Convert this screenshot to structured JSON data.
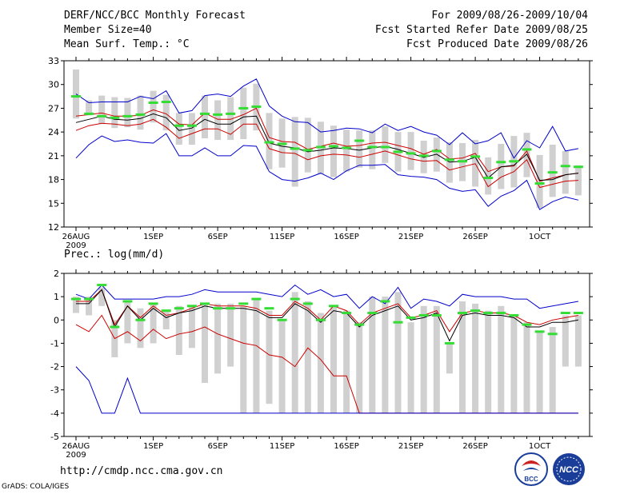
{
  "header": {
    "title": "DERF/NCC/BCC Monthly Forecast",
    "member_size": "Member Size=40",
    "variable": "Mean Surf. Temp.: °C",
    "period": "For 2009/08/26-2009/10/04",
    "started": "Fcst Started Refer Date 2009/08/25",
    "produced": "Fcst Produced Date 2009/08/26"
  },
  "footer": {
    "url": "http://cmdp.ncc.cma.gov.cn",
    "credit": "GrADS: COLA/IGES"
  },
  "logos": {
    "bcc_label": "BCC",
    "ncc_label": "NCC"
  },
  "colors": {
    "max_min": "#0000cc",
    "spread": "#cc0000",
    "mean": "#000000",
    "ref": "#33dd33",
    "box": "#d0d0d0"
  },
  "chart_data": [
    {
      "type": "line",
      "title": "Mean Surf. Temp.: °C",
      "ylim": [
        12,
        33
      ],
      "yticks": [
        "33",
        "30",
        "27",
        "24",
        "21",
        "18",
        "15",
        "12"
      ],
      "x_tick_labels": [
        {
          "label": "26AUG",
          "day": 0,
          "sub": "2009"
        },
        {
          "label": "1SEP",
          "day": 6
        },
        {
          "label": "6SEP",
          "day": 11
        },
        {
          "label": "11SEP",
          "day": 16
        },
        {
          "label": "16SEP",
          "day": 21
        },
        {
          "label": "21SEP",
          "day": 26
        },
        {
          "label": "26SEP",
          "day": 31
        },
        {
          "label": "1OCT",
          "day": 36
        }
      ],
      "days": 39,
      "series": [
        {
          "name": "max",
          "color": "#0000cc",
          "values": [
            28.8,
            27.7,
            27.8,
            27.8,
            27.8,
            28.5,
            28.2,
            29.2,
            26.4,
            26.7,
            28.6,
            28.8,
            28.5,
            29.8,
            30.7,
            27.3,
            26.0,
            25.3,
            25.2,
            24.0,
            24.2,
            24.5,
            24.4,
            23.9,
            25.0,
            24.2,
            24.7,
            24.0,
            23.6,
            22.4,
            23.9,
            22.5,
            22.9,
            23.9,
            20.7,
            22.9,
            22.0,
            24.7,
            21.6,
            21.9
          ]
        },
        {
          "name": "spread_high",
          "color": "#cc0000",
          "values": [
            26.0,
            26.2,
            26.4,
            26.0,
            26.0,
            26.1,
            26.8,
            26.3,
            25.0,
            24.9,
            26.4,
            25.6,
            25.6,
            26.2,
            27.0,
            23.3,
            22.8,
            22.7,
            21.8,
            22.2,
            22.6,
            22.2,
            22.3,
            22.6,
            22.7,
            22.3,
            21.9,
            21.2,
            21.8,
            20.6,
            20.7,
            21.3,
            19.0,
            19.6,
            19.7,
            21.6,
            17.8,
            18.2,
            18.6,
            18.8
          ]
        },
        {
          "name": "mean",
          "color": "#000000",
          "values": [
            25.2,
            25.6,
            26.0,
            25.6,
            25.5,
            25.7,
            26.3,
            25.8,
            24.2,
            24.5,
            25.6,
            25.0,
            25.0,
            25.9,
            26.0,
            22.6,
            22.2,
            22.0,
            21.5,
            21.7,
            22.0,
            21.9,
            21.7,
            22.0,
            22.2,
            21.8,
            21.3,
            20.8,
            21.2,
            20.2,
            20.3,
            20.8,
            18.2,
            19.6,
            19.8,
            21.2,
            17.9,
            18.0,
            18.6,
            18.8
          ]
        },
        {
          "name": "spread_low",
          "color": "#cc0000",
          "values": [
            24.2,
            24.8,
            25.1,
            25.0,
            24.8,
            25.0,
            25.6,
            24.6,
            23.2,
            23.8,
            24.4,
            24.4,
            23.7,
            25.0,
            25.0,
            21.9,
            21.4,
            21.3,
            20.5,
            21.0,
            21.2,
            21.1,
            20.8,
            21.2,
            21.6,
            21.1,
            20.6,
            20.3,
            20.4,
            19.2,
            19.6,
            20.0,
            17.1,
            18.3,
            19.0,
            20.5,
            17.0,
            17.4,
            17.8,
            17.9
          ]
        },
        {
          "name": "min",
          "color": "#0000cc",
          "values": [
            20.7,
            22.4,
            23.5,
            22.8,
            23.0,
            22.7,
            22.6,
            23.8,
            21.0,
            21.0,
            22.0,
            21.0,
            21.0,
            22.3,
            22.2,
            19.0,
            18.0,
            17.8,
            18.2,
            18.8,
            18.0,
            19.1,
            19.8,
            19.8,
            19.9,
            18.6,
            18.4,
            18.3,
            18.0,
            16.9,
            16.5,
            16.7,
            14.6,
            15.9,
            16.6,
            17.9,
            14.2,
            15.2,
            15.8,
            15.4
          ]
        }
      ],
      "boxes": [
        [
          25.7,
          31.9
        ],
        [
          26.1,
          28.0
        ],
        [
          25.0,
          28.6
        ],
        [
          24.5,
          28.4
        ],
        [
          24.6,
          28.3
        ],
        [
          24.3,
          28.6
        ],
        [
          25.2,
          29.2
        ],
        [
          24.2,
          28.7
        ],
        [
          22.4,
          26.4
        ],
        [
          22.4,
          26.4
        ],
        [
          23.2,
          28.6
        ],
        [
          23.0,
          28.0
        ],
        [
          23.0,
          28.4
        ],
        [
          23.1,
          29.6
        ],
        [
          24.2,
          30.1
        ],
        [
          19.3,
          26.4
        ],
        [
          19.5,
          25.7
        ],
        [
          17.1,
          25.9
        ],
        [
          18.9,
          25.8
        ],
        [
          18.7,
          25.3
        ],
        [
          18.3,
          24.8
        ],
        [
          19.0,
          24.3
        ],
        [
          19.5,
          24.2
        ],
        [
          19.3,
          24.2
        ],
        [
          20.1,
          24.7
        ],
        [
          19.0,
          24.0
        ],
        [
          19.2,
          24.0
        ],
        [
          18.8,
          22.9
        ],
        [
          19.0,
          23.3
        ],
        [
          17.6,
          22.7
        ],
        [
          17.8,
          22.6
        ],
        [
          17.1,
          23.0
        ],
        [
          16.1,
          20.8
        ],
        [
          16.8,
          22.5
        ],
        [
          17.0,
          23.5
        ],
        [
          18.3,
          23.9
        ],
        [
          14.4,
          21.1
        ],
        [
          15.8,
          22.4
        ],
        [
          16.2,
          21.6
        ],
        [
          16.0,
          19.8
        ]
      ],
      "ref_marks": [
        28.5,
        26.3,
        26.0,
        25.8,
        26.0,
        26.2,
        27.7,
        27.8,
        24.8,
        24.8,
        26.3,
        26.2,
        26.3,
        27.0,
        27.2,
        22.7,
        22.5,
        21.9,
        21.7,
        22.1,
        22.2,
        22.0,
        22.9,
        22.1,
        22.1,
        21.5,
        21.3,
        21.0,
        21.6,
        20.5,
        20.3,
        20.9,
        18.2,
        20.2,
        20.3,
        21.8,
        17.5,
        18.9,
        19.7,
        19.6
      ]
    },
    {
      "type": "line",
      "title": "Prec.: log(mm/d)",
      "ylim": [
        -5,
        2
      ],
      "yticks": [
        "2",
        "1",
        "0",
        "-1",
        "-2",
        "-3",
        "-4",
        "-5"
      ],
      "x_tick_labels": [
        {
          "label": "26AUG",
          "day": 0,
          "sub": "2009"
        },
        {
          "label": "1SEP",
          "day": 6
        },
        {
          "label": "6SEP",
          "day": 11
        },
        {
          "label": "11SEP",
          "day": 16
        },
        {
          "label": "16SEP",
          "day": 21
        },
        {
          "label": "21SEP",
          "day": 26
        },
        {
          "label": "26SEP",
          "day": 31
        },
        {
          "label": "1OCT",
          "day": 36
        }
      ],
      "days": 39,
      "series": [
        {
          "name": "max",
          "color": "#0000cc",
          "values": [
            1.1,
            0.9,
            1.5,
            0.9,
            0.9,
            0.9,
            0.9,
            1.0,
            1.0,
            1.1,
            1.3,
            1.2,
            1.2,
            1.2,
            1.2,
            1.1,
            1.0,
            1.5,
            1.1,
            1.3,
            1.0,
            1.1,
            0.5,
            1.0,
            0.7,
            1.4,
            0.5,
            0.9,
            0.8,
            0.6,
            1.1,
            1.0,
            1.0,
            1.0,
            0.9,
            0.9,
            0.5,
            0.6,
            0.7,
            0.8
          ]
        },
        {
          "name": "spread_high",
          "color": "#cc0000",
          "values": [
            0.8,
            0.8,
            1.3,
            -0.2,
            0.6,
            0.1,
            0.6,
            0.2,
            0.3,
            0.5,
            0.7,
            0.6,
            0.6,
            0.6,
            0.5,
            0.2,
            0.2,
            0.8,
            0.5,
            0.0,
            0.6,
            0.4,
            -0.2,
            0.3,
            0.5,
            0.7,
            0.1,
            0.2,
            0.4,
            -0.5,
            0.3,
            0.4,
            0.3,
            0.3,
            0.2,
            -0.1,
            -0.2,
            0.0,
            0.1,
            0.2
          ]
        },
        {
          "name": "mean",
          "color": "#000000",
          "values": [
            0.7,
            0.7,
            1.3,
            -0.3,
            0.6,
            0.0,
            0.5,
            0.1,
            0.3,
            0.4,
            0.6,
            0.5,
            0.5,
            0.5,
            0.4,
            0.1,
            0.1,
            0.7,
            0.4,
            -0.1,
            0.4,
            0.3,
            -0.3,
            0.2,
            0.4,
            0.6,
            0.0,
            0.1,
            0.3,
            -0.9,
            0.2,
            0.3,
            0.2,
            0.2,
            0.1,
            -0.3,
            -0.3,
            -0.1,
            -0.1,
            0.0
          ]
        },
        {
          "name": "spread_low",
          "color": "#cc0000",
          "values": [
            -0.2,
            -0.5,
            0.2,
            -0.8,
            -0.5,
            -0.9,
            -0.4,
            -0.8,
            -0.6,
            -0.5,
            -0.3,
            -0.6,
            -0.8,
            -1.0,
            -1.1,
            -1.5,
            -1.6,
            -2.0,
            -1.2,
            -1.7,
            -2.4,
            -2.4,
            -4.0,
            -4.0,
            -4.0,
            -4.0,
            -4.0,
            -4.0,
            -4.0,
            -4.0,
            -4.0,
            -4.0,
            -4.0,
            -4.0,
            -4.0,
            -4.0,
            -4.0,
            -4.0,
            -4.0,
            -4.0
          ]
        },
        {
          "name": "min",
          "color": "#0000cc",
          "values": [
            -2.0,
            -2.6,
            -4.0,
            -4.0,
            -2.5,
            -4.0,
            -4.0,
            -4.0,
            -4.0,
            -4.0,
            -4.0,
            -4.0,
            -4.0,
            -4.0,
            -4.0,
            -4.0,
            -4.0,
            -4.0,
            -4.0,
            -4.0,
            -4.0,
            -4.0,
            -4.0,
            -4.0,
            -4.0,
            -4.0,
            -4.0,
            -4.0,
            -4.0,
            -4.0,
            -4.0,
            -4.0,
            -4.0,
            -4.0,
            -4.0,
            -4.0,
            -4.0,
            -4.0,
            -4.0,
            -4.0
          ]
        }
      ],
      "boxes": [
        [
          0.3,
          1.0
        ],
        [
          0.2,
          1.0
        ],
        [
          0.6,
          1.4
        ],
        [
          -1.6,
          0.0
        ],
        [
          -1.0,
          0.8
        ],
        [
          -1.2,
          0.5
        ],
        [
          -1.0,
          0.7
        ],
        [
          -0.4,
          0.4
        ],
        [
          -1.5,
          0.6
        ],
        [
          -1.2,
          0.6
        ],
        [
          -2.7,
          0.7
        ],
        [
          -2.3,
          0.7
        ],
        [
          -2.0,
          0.7
        ],
        [
          -4.0,
          0.6
        ],
        [
          -4.0,
          0.9
        ],
        [
          -3.6,
          0.4
        ],
        [
          -4.0,
          0.0
        ],
        [
          -4.0,
          1.2
        ],
        [
          -4.0,
          0.8
        ],
        [
          -4.0,
          0.3
        ],
        [
          -4.0,
          0.6
        ],
        [
          -4.0,
          0.4
        ],
        [
          -4.0,
          -0.1
        ],
        [
          -4.0,
          1.0
        ],
        [
          -4.0,
          1.0
        ],
        [
          -4.0,
          1.2
        ],
        [
          -4.0,
          -0.1
        ],
        [
          -4.0,
          0.6
        ],
        [
          -4.0,
          0.6
        ],
        [
          -2.3,
          -1.0
        ],
        [
          -4.0,
          0.8
        ],
        [
          -4.0,
          0.7
        ],
        [
          -4.0,
          0.4
        ],
        [
          -4.0,
          0.6
        ],
        [
          -4.0,
          0.2
        ],
        [
          -4.0,
          -0.1
        ],
        [
          -4.0,
          -0.5
        ],
        [
          -4.0,
          -0.3
        ],
        [
          -2.0,
          0.2
        ],
        [
          -2.0,
          0.2
        ]
      ],
      "ref_marks": [
        0.9,
        0.9,
        1.5,
        -0.3,
        0.8,
        0.0,
        0.7,
        0.4,
        0.5,
        0.6,
        0.7,
        0.5,
        0.5,
        0.7,
        0.9,
        0.5,
        0.0,
        0.9,
        0.7,
        0.0,
        0.6,
        0.3,
        -0.2,
        0.3,
        0.8,
        -0.1,
        0.1,
        0.2,
        0.2,
        -1.0,
        0.3,
        0.4,
        0.3,
        0.3,
        0.2,
        -0.2,
        -0.5,
        -0.6,
        0.3,
        0.3
      ]
    }
  ]
}
